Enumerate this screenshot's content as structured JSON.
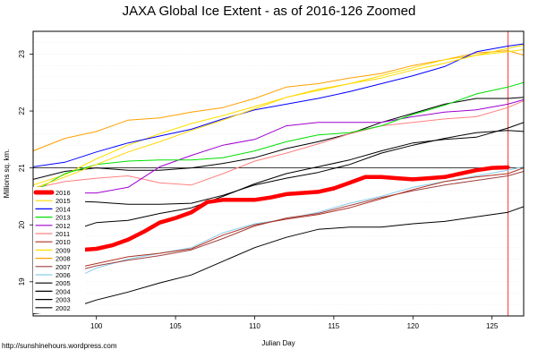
{
  "chart_data": {
    "type": "line",
    "title": "JAXA Global Ice Extent - as of 2016-126 Zoomed",
    "xlabel": "Julian Day",
    "ylabel": "Millions sq. km.",
    "xlim": [
      96,
      127
    ],
    "ylim": [
      18.4,
      23.4
    ],
    "xticks": [
      100,
      105,
      110,
      115,
      120,
      125
    ],
    "yticks": [
      19,
      20,
      21,
      22,
      23
    ],
    "grid": true,
    "legend_position": "left",
    "reference_lines": {
      "horizontal_y": 21,
      "vertical_x": 126
    },
    "series": [
      {
        "name": "2016",
        "color": "#ff0000",
        "width": 4.5,
        "x": [
          96,
          98,
          99,
          100,
          101,
          102,
          103,
          104,
          105,
          106,
          107,
          108,
          109,
          110,
          111,
          112,
          113,
          114,
          115,
          116,
          117,
          118,
          119,
          120,
          121,
          122,
          123,
          124,
          125,
          126
        ],
        "y": [
          19.54,
          19.55,
          19.56,
          19.58,
          19.64,
          19.74,
          19.88,
          20.04,
          20.12,
          20.22,
          20.4,
          20.44,
          20.44,
          20.44,
          20.48,
          20.54,
          20.56,
          20.58,
          20.64,
          20.74,
          20.84,
          20.84,
          20.82,
          20.8,
          20.82,
          20.84,
          20.9,
          20.96,
          21.0,
          21.01
        ]
      },
      {
        "name": "2015",
        "color": "#ffd700",
        "width": 1,
        "x": [
          96,
          98,
          100,
          102,
          104,
          106,
          108,
          110,
          112,
          114,
          116,
          118,
          120,
          122,
          124,
          126,
          127
        ],
        "y": [
          20.64,
          20.84,
          21.06,
          21.28,
          21.46,
          21.66,
          21.84,
          22.04,
          22.24,
          22.38,
          22.48,
          22.58,
          22.72,
          22.84,
          22.98,
          23.1,
          23.16
        ]
      },
      {
        "name": "2014",
        "color": "#0000ff",
        "width": 1,
        "x": [
          96,
          98,
          100,
          102,
          104,
          106,
          108,
          110,
          112,
          114,
          116,
          118,
          120,
          122,
          124,
          126,
          127
        ],
        "y": [
          21.02,
          21.1,
          21.28,
          21.44,
          21.56,
          21.68,
          21.86,
          22.02,
          22.12,
          22.22,
          22.34,
          22.48,
          22.62,
          22.78,
          23.04,
          23.14,
          23.18
        ]
      },
      {
        "name": "2013",
        "color": "#00e000",
        "width": 1,
        "x": [
          96,
          98,
          100,
          102,
          104,
          106,
          108,
          110,
          112,
          114,
          116,
          118,
          120,
          122,
          124,
          126,
          127
        ],
        "y": [
          20.58,
          20.9,
          21.06,
          21.12,
          21.14,
          21.14,
          21.18,
          21.3,
          21.46,
          21.58,
          21.62,
          21.74,
          21.94,
          22.1,
          22.3,
          22.42,
          22.5
        ]
      },
      {
        "name": "2012",
        "color": "#a000d0",
        "width": 1,
        "x": [
          96,
          98,
          100,
          102,
          104,
          106,
          108,
          110,
          112,
          114,
          116,
          118,
          120,
          122,
          124,
          126,
          127
        ],
        "y": [
          20.6,
          20.56,
          20.56,
          20.66,
          21.02,
          21.22,
          21.4,
          21.5,
          21.74,
          21.8,
          21.8,
          21.8,
          21.9,
          21.98,
          22.02,
          22.12,
          22.2
        ]
      },
      {
        "name": "2011",
        "color": "#ff8080",
        "width": 1,
        "x": [
          96,
          98,
          100,
          102,
          104,
          106,
          108,
          110,
          112,
          114,
          116,
          118,
          120,
          122,
          124,
          126,
          127
        ],
        "y": [
          20.64,
          20.76,
          20.82,
          20.86,
          20.74,
          20.7,
          20.9,
          21.12,
          21.26,
          21.42,
          21.6,
          21.74,
          21.8,
          21.86,
          21.9,
          22.06,
          22.18
        ]
      },
      {
        "name": "2010",
        "color": "#b03020",
        "width": 1,
        "x": [
          96,
          98,
          100,
          102,
          104,
          106,
          108,
          110,
          112,
          114,
          116,
          118,
          120,
          122,
          124,
          126,
          127
        ],
        "y": [
          18.96,
          19.2,
          19.32,
          19.44,
          19.5,
          19.58,
          19.82,
          20.0,
          20.1,
          20.18,
          20.3,
          20.46,
          20.62,
          20.76,
          20.84,
          20.9,
          21.0
        ]
      },
      {
        "name": "2009",
        "color": "#ffe000",
        "width": 1,
        "x": [
          96,
          98,
          100,
          102,
          104,
          106,
          108,
          110,
          112,
          114,
          116,
          118,
          120,
          122,
          124,
          126,
          127
        ],
        "y": [
          20.7,
          20.88,
          21.16,
          21.4,
          21.6,
          21.78,
          21.92,
          22.08,
          22.24,
          22.36,
          22.48,
          22.62,
          22.76,
          22.9,
          22.98,
          23.04,
          23.08
        ]
      },
      {
        "name": "2008",
        "color": "#ffa000",
        "width": 1,
        "x": [
          96,
          98,
          100,
          102,
          104,
          106,
          108,
          110,
          112,
          114,
          116,
          118,
          120,
          122,
          124,
          126,
          127
        ],
        "y": [
          21.3,
          21.52,
          21.64,
          21.84,
          21.88,
          21.98,
          22.06,
          22.22,
          22.42,
          22.48,
          22.58,
          22.66,
          22.8,
          22.9,
          23.02,
          23.06,
          22.98
        ]
      },
      {
        "name": "2007",
        "color": "#a04040",
        "width": 1,
        "x": [
          96,
          98,
          100,
          102,
          104,
          106,
          108,
          110,
          112,
          114,
          116,
          118,
          120,
          122,
          124,
          126,
          127
        ],
        "y": [
          19.04,
          19.14,
          19.28,
          19.38,
          19.46,
          19.56,
          19.76,
          19.98,
          20.12,
          20.2,
          20.34,
          20.48,
          20.6,
          20.7,
          20.78,
          20.86,
          20.94
        ]
      },
      {
        "name": "2006",
        "color": "#87ceeb",
        "width": 1,
        "x": [
          96,
          98,
          100,
          102,
          104,
          106,
          108,
          110,
          112,
          114,
          116,
          118,
          120,
          122,
          124,
          126,
          127
        ],
        "y": [
          18.6,
          18.98,
          19.24,
          19.4,
          19.5,
          19.6,
          19.86,
          20.02,
          20.1,
          20.22,
          20.38,
          20.5,
          20.66,
          20.76,
          20.86,
          20.96,
          21.02
        ]
      },
      {
        "name": "2005",
        "color": "#000000",
        "width": 1,
        "x": [
          96,
          98,
          100,
          102,
          104,
          106,
          108,
          110,
          112,
          114,
          116,
          118,
          120,
          122,
          124,
          126,
          127
        ],
        "y": [
          20.8,
          20.94,
          21.0,
          20.96,
          20.96,
          21.0,
          21.08,
          21.18,
          21.34,
          21.46,
          21.6,
          21.8,
          21.96,
          22.12,
          22.22,
          22.22,
          22.24
        ]
      },
      {
        "name": "2004",
        "color": "#000000",
        "width": 1,
        "x": [
          96,
          98,
          100,
          102,
          104,
          106,
          108,
          110,
          112,
          114,
          116,
          118,
          120,
          122,
          124,
          126,
          127
        ],
        "y": [
          18.44,
          18.5,
          18.68,
          18.82,
          18.98,
          19.12,
          19.36,
          19.6,
          19.78,
          19.92,
          19.96,
          19.96,
          20.02,
          20.06,
          20.14,
          20.22,
          20.32
        ]
      },
      {
        "name": "2003",
        "color": "#000000",
        "width": 1,
        "x": [
          96,
          98,
          100,
          102,
          104,
          106,
          108,
          110,
          112,
          114,
          116,
          118,
          120,
          122,
          124,
          126,
          127
        ],
        "y": [
          19.68,
          19.86,
          20.04,
          20.08,
          20.2,
          20.3,
          20.5,
          20.72,
          20.9,
          21.02,
          21.14,
          21.3,
          21.44,
          21.5,
          21.54,
          21.7,
          21.8
        ]
      },
      {
        "name": "2002",
        "color": "#000000",
        "width": 1,
        "x": [
          96,
          98,
          100,
          102,
          104,
          106,
          108,
          110,
          112,
          114,
          116,
          118,
          120,
          122,
          124,
          126,
          127
        ],
        "y": [
          20.34,
          20.42,
          20.4,
          20.36,
          20.36,
          20.38,
          20.52,
          20.7,
          20.82,
          20.92,
          21.06,
          21.26,
          21.4,
          21.52,
          21.62,
          21.66,
          21.64
        ]
      }
    ]
  },
  "credit": "http://sunshinehours.wordpress.com"
}
